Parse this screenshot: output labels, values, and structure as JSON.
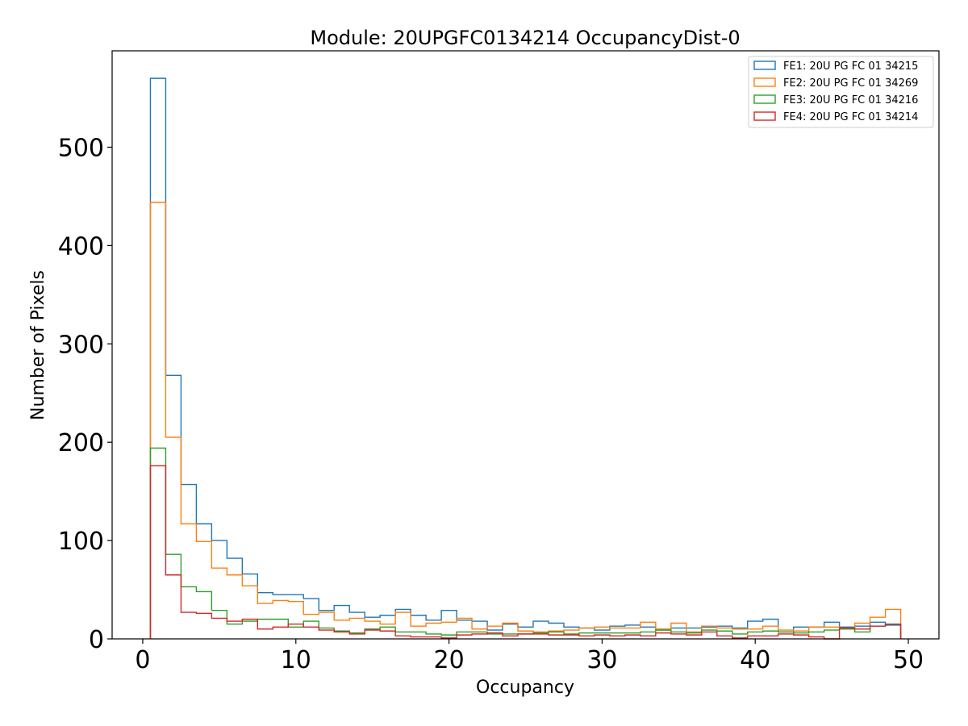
{
  "chart_data": {
    "type": "histogram-step",
    "title": "Module: 20UPGFC0134214 OccupancyDist-0",
    "xlabel": "Occupancy",
    "ylabel": "Number of Pixels",
    "xlim": [
      -2,
      52
    ],
    "ylim": [
      0,
      598
    ],
    "xticks": [
      0,
      10,
      20,
      30,
      40,
      50
    ],
    "yticks": [
      0,
      100,
      200,
      300,
      400,
      500
    ],
    "bin_edges_start": 0.5,
    "bin_width": 1,
    "legend_position": "top-right",
    "grid": false,
    "series": [
      {
        "name": "FE1: 20U PG FC 01 34215",
        "color": "#1f77b4",
        "values": [
          570,
          268,
          157,
          117,
          100,
          82,
          66,
          47,
          45,
          45,
          41,
          29,
          34,
          27,
          22,
          24,
          30,
          24,
          19,
          29,
          19,
          18,
          9,
          15,
          12,
          18,
          16,
          12,
          11,
          9,
          13,
          14,
          12,
          9,
          11,
          11,
          12,
          13,
          11,
          18,
          20,
          7,
          12,
          12,
          17,
          12,
          13,
          17,
          14
        ]
      },
      {
        "name": "FE2: 20U PG FC 01 34269",
        "color": "#ff7f0e",
        "values": [
          444,
          205,
          117,
          99,
          72,
          65,
          54,
          36,
          39,
          38,
          25,
          27,
          19,
          21,
          18,
          15,
          27,
          13,
          16,
          17,
          21,
          10,
          13,
          16,
          8,
          7,
          8,
          9,
          11,
          12,
          11,
          11,
          17,
          10,
          16,
          7,
          13,
          11,
          10,
          10,
          13,
          9,
          8,
          12,
          12,
          11,
          16,
          22,
          30
        ]
      },
      {
        "name": "FE3: 20U PG FC 01 34216",
        "color": "#2ca02c",
        "values": [
          194,
          86,
          53,
          48,
          29,
          15,
          18,
          20,
          20,
          12,
          18,
          11,
          8,
          6,
          10,
          12,
          7,
          7,
          5,
          4,
          7,
          7,
          5,
          5,
          5,
          6,
          7,
          5,
          6,
          6,
          6,
          6,
          7,
          9,
          7,
          6,
          9,
          8,
          5,
          7,
          8,
          7,
          6,
          7,
          9,
          10,
          7,
          13,
          15
        ]
      },
      {
        "name": "FE4: 20U PG FC 01 34214",
        "color": "#d62728",
        "values": [
          176,
          65,
          27,
          26,
          21,
          18,
          20,
          10,
          12,
          15,
          12,
          9,
          7,
          5,
          9,
          8,
          3,
          2,
          2,
          1,
          4,
          5,
          6,
          3,
          5,
          5,
          4,
          4,
          3,
          4,
          3,
          4,
          3,
          6,
          5,
          4,
          7,
          3,
          1,
          3,
          3,
          5,
          4,
          2,
          0,
          11,
          10,
          13,
          15
        ]
      }
    ]
  }
}
